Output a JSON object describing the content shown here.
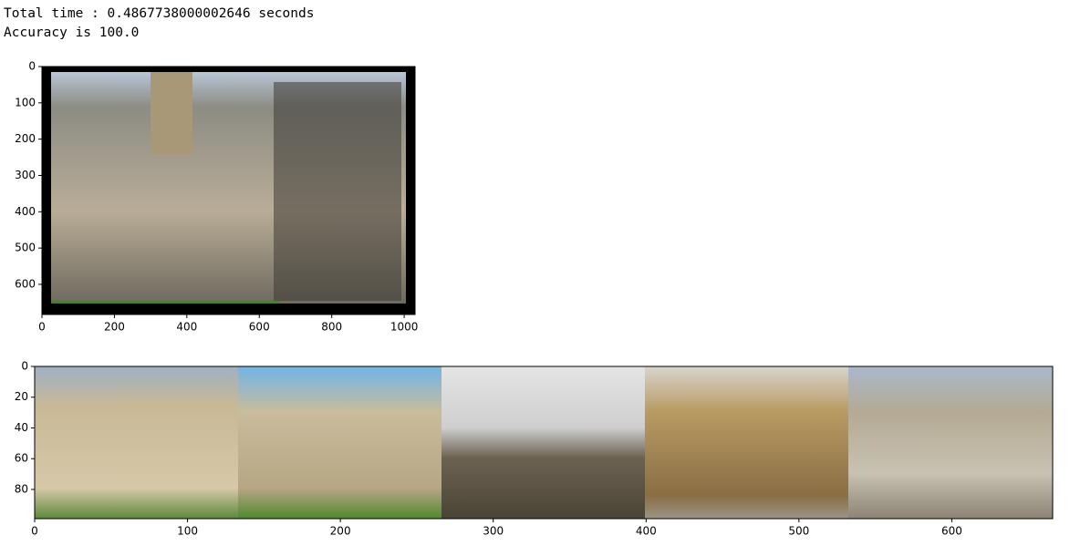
{
  "output": {
    "lines": [
      "Total time : 0.4867738000002646 seconds",
      "Accuracy is 100.0"
    ]
  },
  "chart_data": [
    {
      "type": "image",
      "xlim": [
        0,
        1030
      ],
      "ylim": [
        683,
        0
      ],
      "xticks": [
        0,
        200,
        400,
        600,
        800,
        1000
      ],
      "yticks": [
        0,
        100,
        200,
        300,
        400,
        500,
        600
      ]
    },
    {
      "type": "image",
      "xlim": [
        0,
        666
      ],
      "ylim": [
        99,
        0
      ],
      "xticks": [
        0,
        100,
        200,
        300,
        400,
        500,
        600
      ],
      "yticks": [
        0,
        20,
        40,
        60,
        80
      ]
    }
  ]
}
